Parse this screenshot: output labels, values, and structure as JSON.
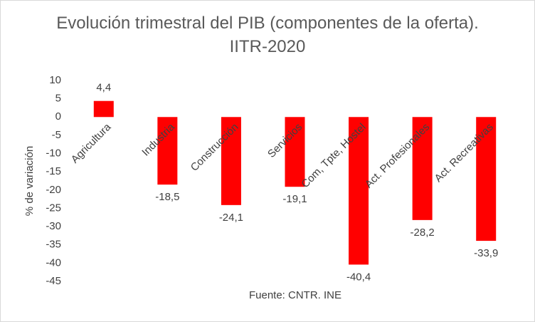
{
  "chart_data": {
    "type": "bar",
    "title": "Evolución trimestral del PIB (componentes de la oferta). IITR-2020",
    "y_label": "% de variación",
    "x_label": "Fuente: CNTR. INE",
    "categories": [
      "Agricultura",
      "Industria",
      "Construcción",
      "Servicios",
      "Com, Tpte, Hostel",
      "Act. Profesionales",
      "Act. Recreativas"
    ],
    "values": [
      4.4,
      -18.5,
      -24.1,
      -19.1,
      -40.4,
      -28.2,
      -33.9
    ],
    "value_labels": [
      "4,4",
      "-18,5",
      "-24,1",
      "-19,1",
      "-40,4",
      "-28,2",
      "-33,9"
    ],
    "color": "#ff0000",
    "ylim": [
      -45,
      10
    ],
    "yticks": [
      10,
      5,
      0,
      -5,
      -10,
      -15,
      -20,
      -25,
      -30,
      -35,
      -40,
      -45
    ]
  }
}
